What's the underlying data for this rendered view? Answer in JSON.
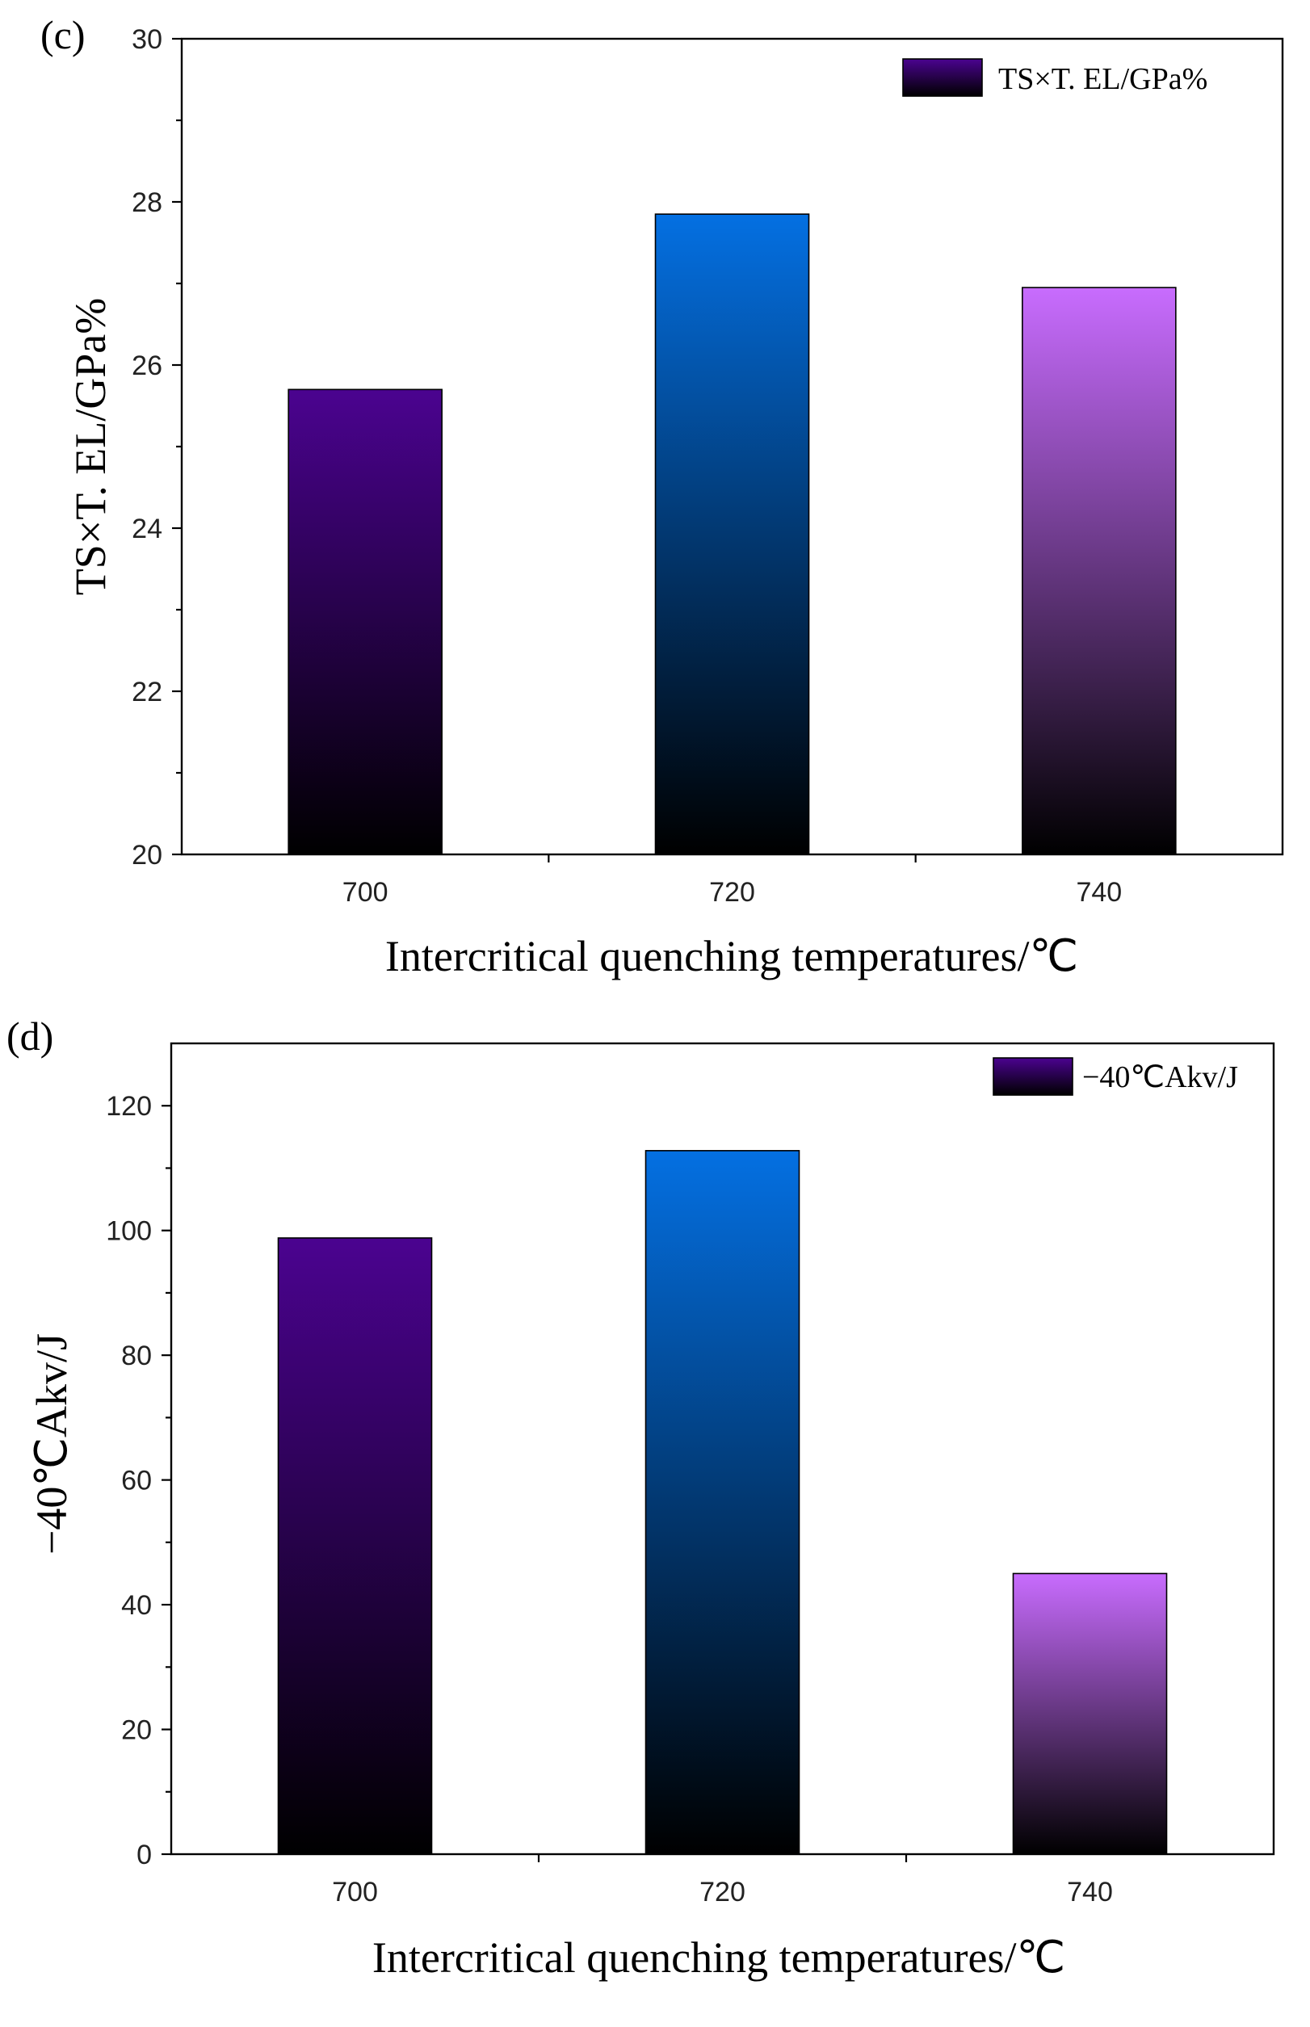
{
  "colors": {
    "bar_700": "#4b0390",
    "bar_720": "#0470e2",
    "bar_740": "#c86cfe",
    "bar_bottom": "#000000"
  },
  "chart_data": [
    {
      "type": "bar",
      "panel_label": "(c)",
      "categories": [
        "700",
        "720",
        "740"
      ],
      "values": [
        25.7,
        27.85,
        26.95
      ],
      "xlabel": "Intercritical quenching temperatures/℃",
      "ylabel": "TS×T. EL/GPa%",
      "ylim": [
        20,
        30
      ],
      "yticks": [
        "20",
        "22",
        "24",
        "26",
        "28",
        "30"
      ],
      "legend": {
        "label": "TS×T. EL/GPa%",
        "position": "top-right"
      },
      "grid": false
    },
    {
      "type": "bar",
      "panel_label": "(d)",
      "categories": [
        "700",
        "720",
        "740"
      ],
      "values": [
        98.8,
        112.8,
        45
      ],
      "xlabel": "Intercritical quenching temperatures/℃",
      "ylabel": "−40℃Akv/J",
      "ylim": [
        0,
        130
      ],
      "yticks": [
        "0",
        "20",
        "40",
        "60",
        "80",
        "100",
        "120"
      ],
      "legend": {
        "label": "−40℃Akv/J",
        "position": "top-right"
      },
      "grid": false
    }
  ]
}
